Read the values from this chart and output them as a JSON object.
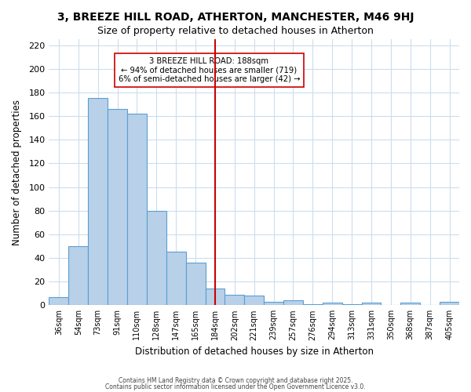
{
  "title": "3, BREEZE HILL ROAD, ATHERTON, MANCHESTER, M46 9HJ",
  "subtitle": "Size of property relative to detached houses in Atherton",
  "xlabel": "Distribution of detached houses by size in Atherton",
  "ylabel": "Number of detached properties",
  "bar_labels": [
    "36sqm",
    "54sqm",
    "73sqm",
    "91sqm",
    "110sqm",
    "128sqm",
    "147sqm",
    "165sqm",
    "184sqm",
    "202sqm",
    "221sqm",
    "239sqm",
    "257sqm",
    "276sqm",
    "294sqm",
    "313sqm",
    "331sqm",
    "350sqm",
    "368sqm",
    "387sqm",
    "405sqm"
  ],
  "bar_values": [
    7,
    50,
    175,
    166,
    162,
    80,
    45,
    36,
    14,
    9,
    8,
    3,
    4,
    1,
    2,
    1,
    2,
    0,
    2,
    0,
    3
  ],
  "bar_color": "#b8d0e8",
  "bar_edge_color": "#5a9fd4",
  "vline_x": 8,
  "vline_color": "#cc0000",
  "annotation_title": "3 BREEZE HILL ROAD: 188sqm",
  "annotation_line1": "← 94% of detached houses are smaller (719)",
  "annotation_line2": "6% of semi-detached houses are larger (42) →",
  "ylim": [
    0,
    225
  ],
  "yticks": [
    0,
    20,
    40,
    60,
    80,
    100,
    120,
    140,
    160,
    180,
    200,
    220
  ],
  "footer1": "Contains HM Land Registry data © Crown copyright and database right 2025.",
  "footer2": "Contains public sector information licensed under the Open Government Licence v3.0.",
  "bg_color": "#ffffff",
  "grid_color": "#ccddee"
}
